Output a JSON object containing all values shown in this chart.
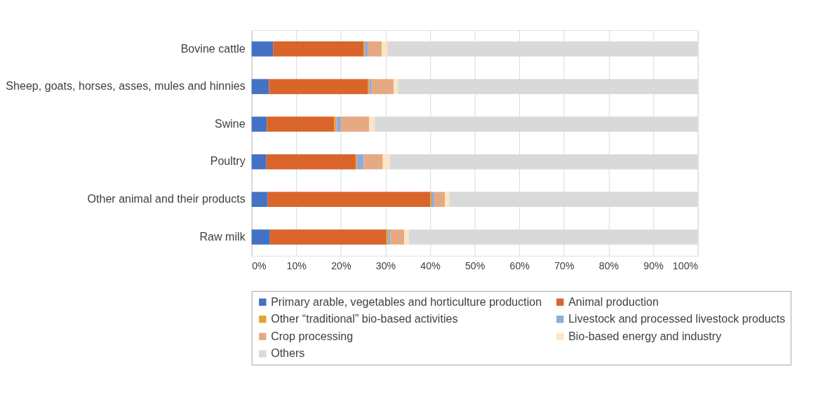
{
  "chart_data": {
    "type": "bar",
    "orientation": "horizontal",
    "stacked": true,
    "categories": [
      "Bovine cattle",
      "Sheep, goats, horses, asses, mules and hinnies",
      "Swine",
      "Poultry",
      "Other animal and their products",
      "Raw milk"
    ],
    "series": [
      {
        "name": "Primary arable, vegetables and horticulture production",
        "color": "#4472c4",
        "values": [
          4.8,
          3.9,
          3.4,
          3.3,
          3.6,
          4.1
        ]
      },
      {
        "name": "Animal production",
        "color": "#d9652b",
        "values": [
          20.3,
          22.2,
          15.1,
          20.0,
          36.4,
          26.1
        ]
      },
      {
        "name": "Other “traditional” bio-based activities",
        "color": "#e9a22e",
        "values": [
          0.3,
          0.3,
          0.5,
          0.3,
          0.3,
          0.4
        ]
      },
      {
        "name": "Livestock and processed livestock products",
        "color": "#8faadc",
        "values": [
          0.7,
          0.5,
          1.0,
          1.5,
          0.6,
          0.5
        ]
      },
      {
        "name": "Crop processing",
        "color": "#e6aa82",
        "values": [
          3.1,
          4.9,
          6.3,
          4.3,
          2.4,
          3.1
        ]
      },
      {
        "name": "Bio-based energy and industry",
        "color": "#fbe5c4",
        "values": [
          1.2,
          1.0,
          1.3,
          1.6,
          1.0,
          1.0
        ]
      },
      {
        "name": "Others",
        "color": "#d9d9d9",
        "values": [
          69.6,
          67.2,
          72.4,
          69.0,
          55.7,
          64.8
        ]
      }
    ],
    "xlim": [
      0,
      100
    ],
    "xticks": [
      {
        "value": 0,
        "label": "0%"
      },
      {
        "value": 10,
        "label": "10%"
      },
      {
        "value": 20,
        "label": "20%"
      },
      {
        "value": 30,
        "label": "30%"
      },
      {
        "value": 40,
        "label": "40%"
      },
      {
        "value": 50,
        "label": "50%"
      },
      {
        "value": 60,
        "label": "60%"
      },
      {
        "value": 70,
        "label": "70%"
      },
      {
        "value": 80,
        "label": "80%"
      },
      {
        "value": 90,
        "label": "90%"
      },
      {
        "value": 100,
        "label": "100%"
      }
    ],
    "grid": "x",
    "legend": "bottom"
  }
}
